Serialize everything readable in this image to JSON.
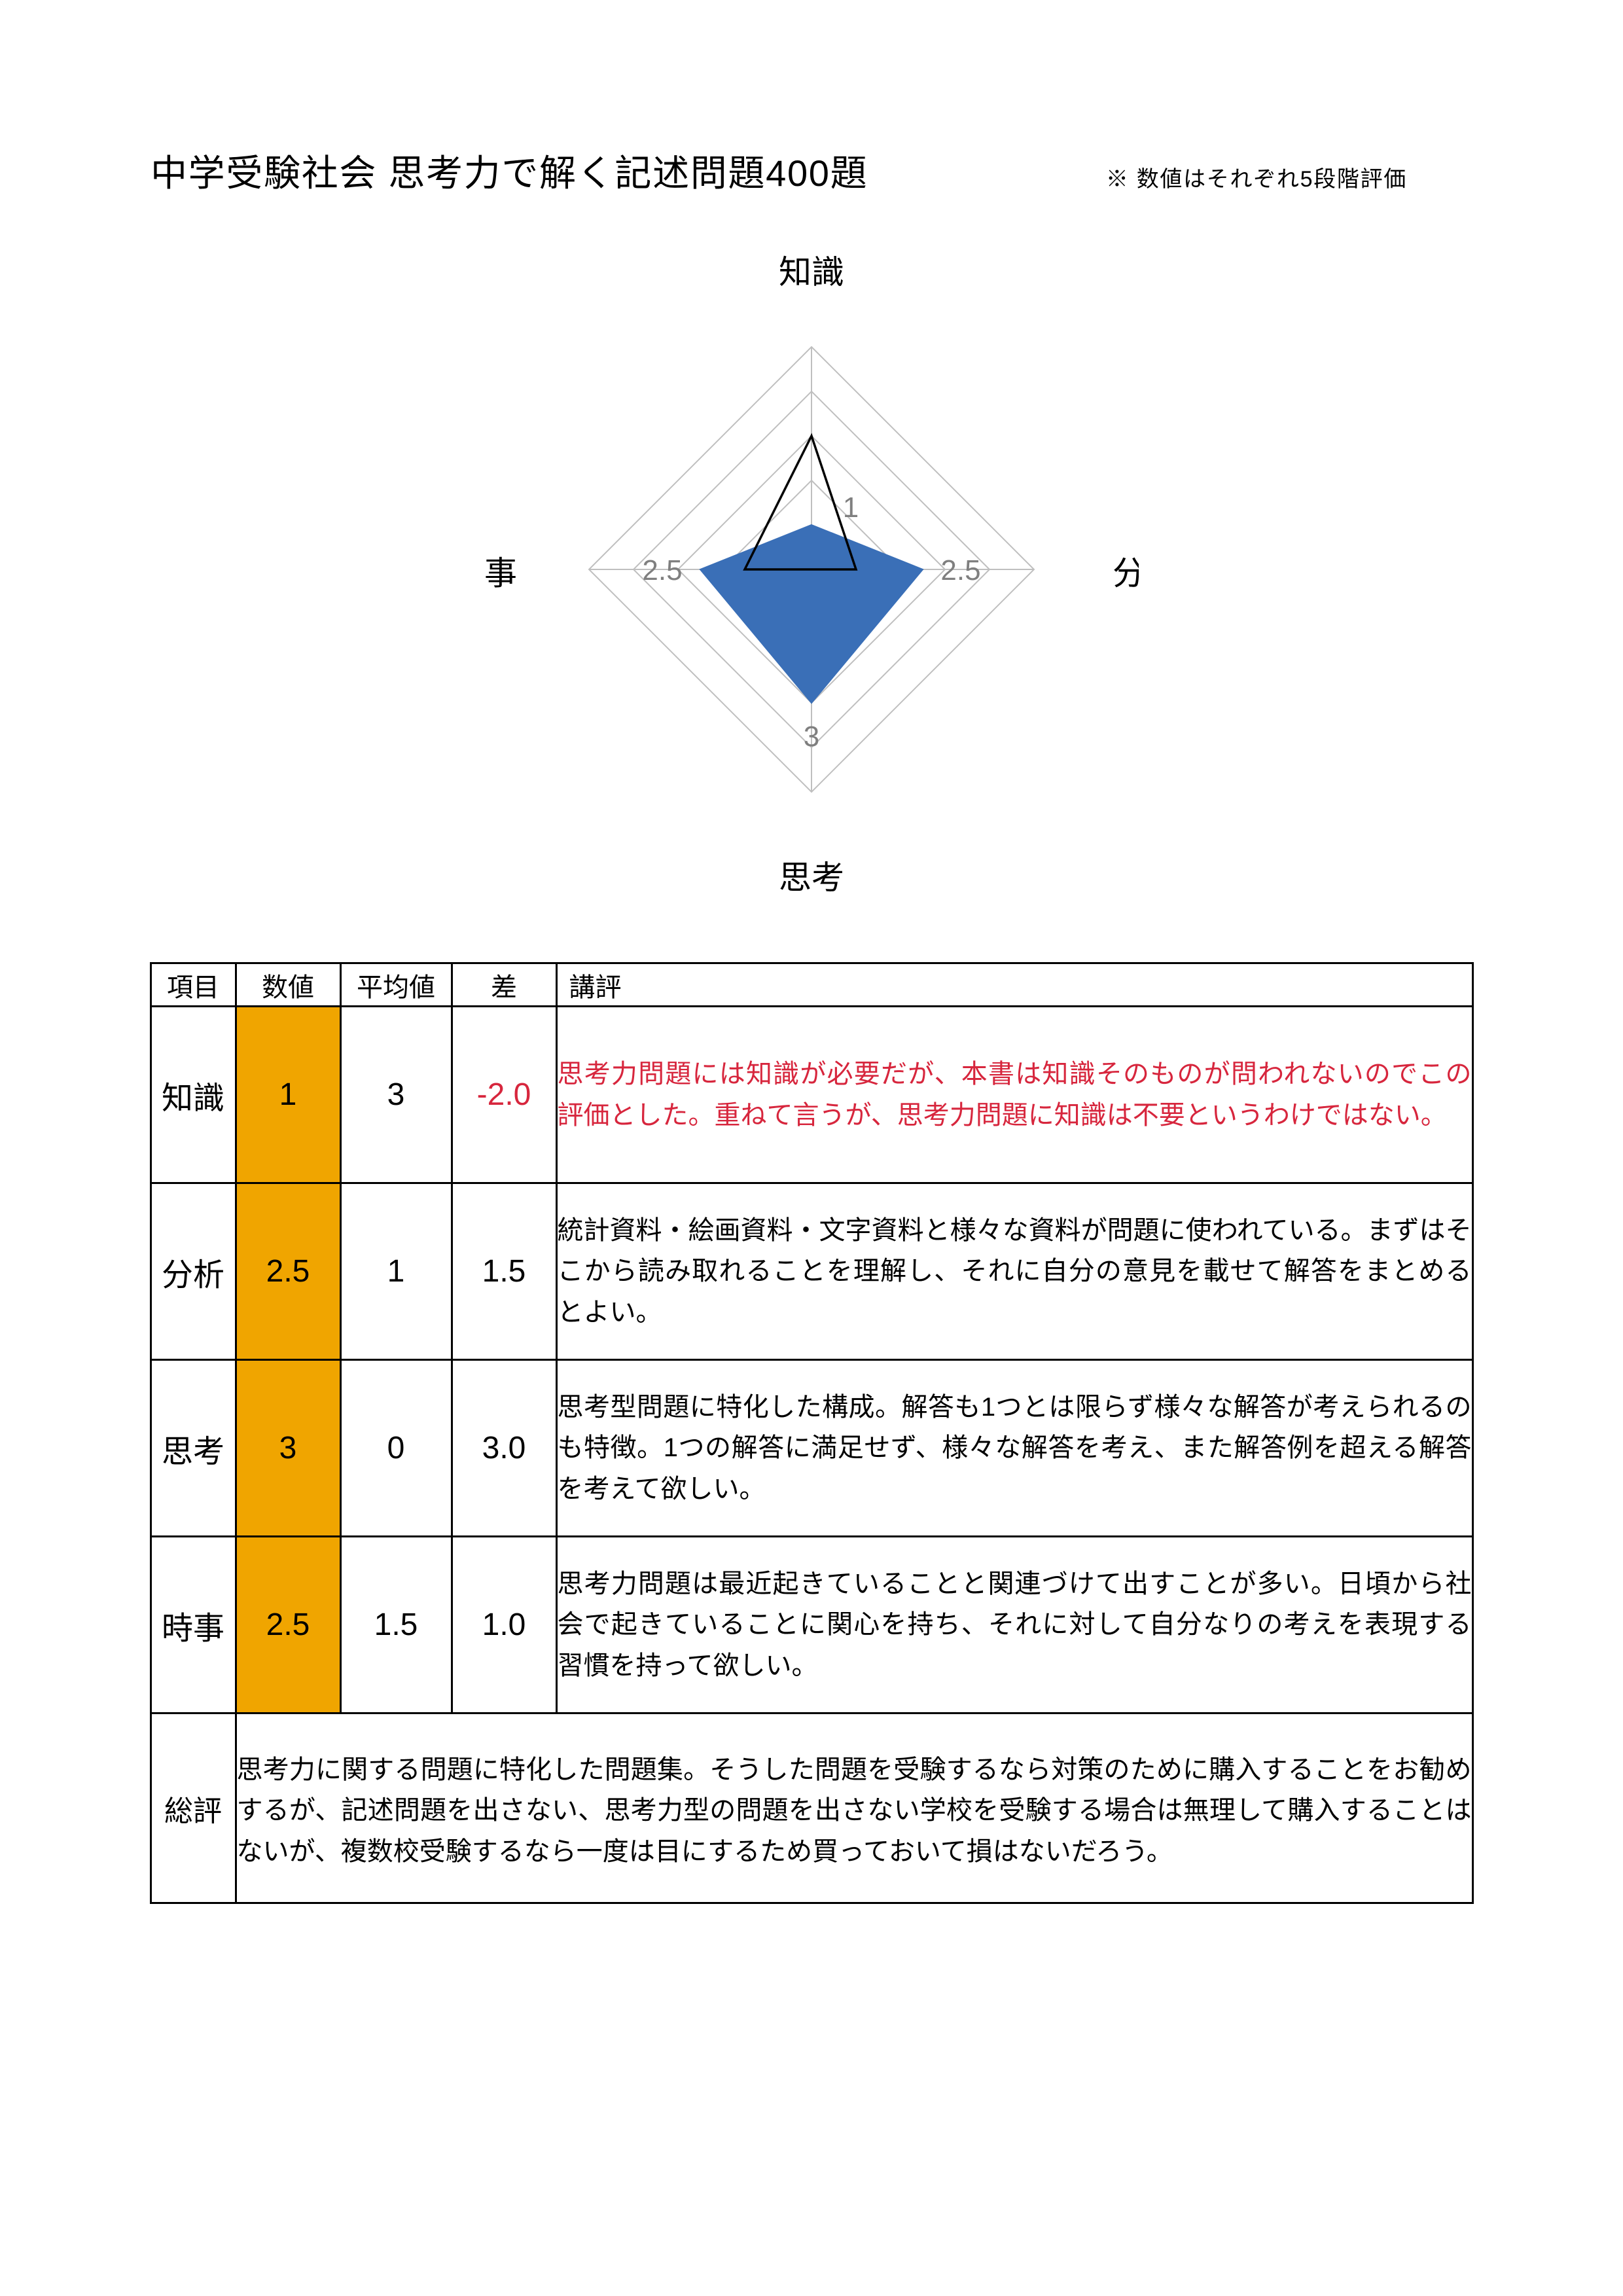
{
  "page": {
    "title": "中学受験社会 思考力で解く記述問題400題",
    "note": "※ 数値はそれぞれ5段階評価",
    "text_color": "#000000",
    "bg_color": "#ffffff"
  },
  "chart": {
    "type": "radar",
    "max": 5,
    "rings": [
      1,
      2,
      3,
      4,
      5
    ],
    "grid_color": "#bfbfbf",
    "axes": [
      {
        "key": "knowledge",
        "label": "知識"
      },
      {
        "key": "analysis",
        "label": "分析"
      },
      {
        "key": "thinking",
        "label": "思考"
      },
      {
        "key": "current",
        "label": "時事"
      }
    ],
    "series": [
      {
        "name": "数値",
        "values": {
          "knowledge": 1,
          "analysis": 2.5,
          "thinking": 3,
          "current": 2.5
        },
        "fill": "#3a6fb7",
        "fill_opacity": 1.0,
        "stroke": "#3a6fb7",
        "stroke_width": 2
      },
      {
        "name": "平均値",
        "values": {
          "knowledge": 3,
          "analysis": 1,
          "thinking": 0,
          "current": 1.5
        },
        "fill": "none",
        "stroke": "#000000",
        "stroke_width": 3.5
      }
    ],
    "shown_ticks": [
      {
        "axis": "knowledge",
        "text": "1",
        "value": 1
      },
      {
        "axis": "analysis",
        "text": "2.5",
        "value": 2.5
      },
      {
        "axis": "thinking",
        "text": "3",
        "value": 3
      },
      {
        "axis": "current",
        "text": "2.5",
        "value": 2.5
      }
    ],
    "tick_color": "#7f7f7f",
    "label_fontsize": 50,
    "tick_fontsize": 44
  },
  "table": {
    "columns": [
      "項目",
      "数値",
      "平均値",
      "差",
      "講評"
    ],
    "value_cell_bg": "#f0a500",
    "negative_color": "#d7263d",
    "text_color": "#000000",
    "rows": [
      {
        "item": "知識",
        "value": "1",
        "avg": "3",
        "diff": "-2.0",
        "diff_negative": true,
        "review": "思考力問題には知識が必要だが、本書は知識そのものが問われないのでこの評価とした。重ねて言うが、思考力問題に知識は不要というわけではない。",
        "review_highlight": true
      },
      {
        "item": "分析",
        "value": "2.5",
        "avg": "1",
        "diff": "1.5",
        "diff_negative": false,
        "review": "統計資料・絵画資料・文字資料と様々な資料が問題に使われている。まずはそこから読み取れることを理解し、それに自分の意見を載せて解答をまとめるとよい。"
      },
      {
        "item": "思考",
        "value": "3",
        "avg": "0",
        "diff": "3.0",
        "diff_negative": false,
        "review": "思考型問題に特化した構成。解答も1つとは限らず様々な解答が考えられるのも特徴。1つの解答に満足せず、様々な解答を考え、また解答例を超える解答を考えて欲しい。"
      },
      {
        "item": "時事",
        "value": "2.5",
        "avg": "1.5",
        "diff": "1.0",
        "diff_negative": false,
        "review": "思考力問題は最近起きていることと関連づけて出すことが多い。日頃から社会で起きていることに関心を持ち、それに対して自分なりの考えを表現する習慣を持って欲しい。"
      }
    ],
    "summary": {
      "label": "総評",
      "text": "思考力に関する問題に特化した問題集。そうした問題を受験するなら対策のために購入することをお勧めするが、記述問題を出さない、思考力型の問題を出さない学校を受験する場合は無理して購入することはないが、複数校受験するなら一度は目にするため買っておいて損はないだろう。"
    }
  }
}
